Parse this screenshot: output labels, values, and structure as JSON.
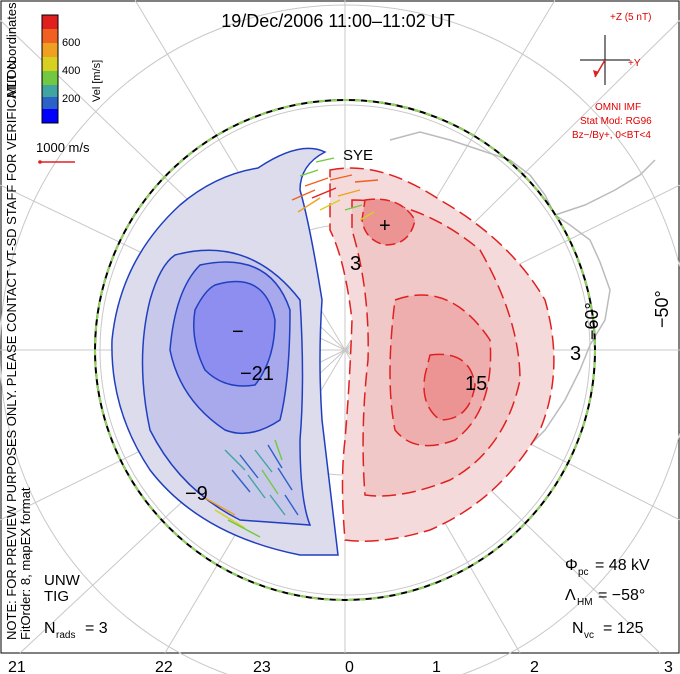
{
  "title": "19/Dec/2006 11:00–11:02 UT",
  "side_note": "NOTE: FOR PREVIEW PURPOSES ONLY. PLEASE CONTACT VT-SD STAFF FOR VERIFICATION.",
  "fit_order": "FitOrder: 8, mapEX format",
  "coord_label": "MLT coordinates",
  "colorbar": {
    "label": "Vel [m/s]",
    "ticks": [
      "600",
      "400",
      "200"
    ],
    "colors": [
      "#0000ff",
      "#2a62c8",
      "#41a4a0",
      "#72c840",
      "#d8d020",
      "#f0a020",
      "#f06020",
      "#e02020"
    ]
  },
  "vector_scale": "1000 m/s",
  "imf": {
    "z_label": "+Z (5 nT)",
    "y_label": "+Y",
    "omni": "OMNI IMF",
    "stat_mod": "Stat Mod: RG96",
    "bz_by": "Bz−/By+, 0<BT<4"
  },
  "lat_labels": [
    "−60°",
    "−50°"
  ],
  "contour_labels": [
    "−21",
    "−9",
    "15",
    "3",
    "3"
  ],
  "min_marker": "−",
  "max_marker": "+",
  "stations": [
    "SYE",
    "UNW",
    "TIG"
  ],
  "stats": {
    "phi_pc": "= 48 kV",
    "lambda_hm": "= −58°",
    "n_vc": "= 125",
    "n_rads": "= 3"
  },
  "mlt_labels": [
    "21",
    "22",
    "23",
    "0",
    "1",
    "2",
    "3"
  ]
}
